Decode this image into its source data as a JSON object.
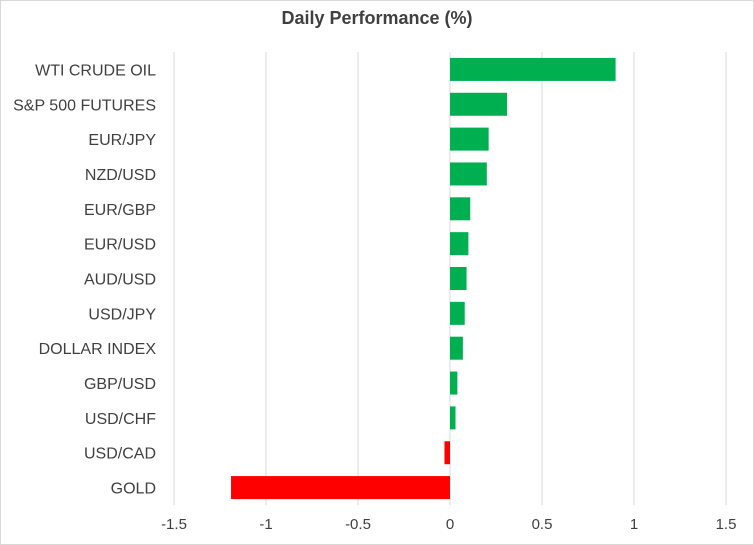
{
  "chart_data": {
    "type": "bar",
    "orientation": "horizontal",
    "title": "Daily Performance (%)",
    "xlabel": "",
    "ylabel": "",
    "xlim": [
      -1.5,
      1.5
    ],
    "x_ticks": [
      -1.5,
      -1,
      -0.5,
      0,
      0.5,
      1,
      1.5
    ],
    "x_tick_labels": [
      "-1.5",
      "-1",
      "-0.5",
      "0",
      "0.5",
      "1",
      "1.5"
    ],
    "grid": "vertical",
    "categories": [
      "WTI CRUDE OIL",
      "S&P 500 FUTURES",
      "EUR/JPY",
      "NZD/USD",
      "EUR/GBP",
      "EUR/USD",
      "AUD/USD",
      "USD/JPY",
      "DOLLAR INDEX",
      "GBP/USD",
      "USD/CHF",
      "USD/CAD",
      "GOLD"
    ],
    "values": [
      0.9,
      0.31,
      0.21,
      0.2,
      0.11,
      0.1,
      0.09,
      0.08,
      0.07,
      0.04,
      0.03,
      -0.03,
      -1.19
    ],
    "colors": {
      "positive": "#00b050",
      "negative": "#ff0000",
      "grid": "#d9d9d9",
      "text": "#404040"
    }
  }
}
